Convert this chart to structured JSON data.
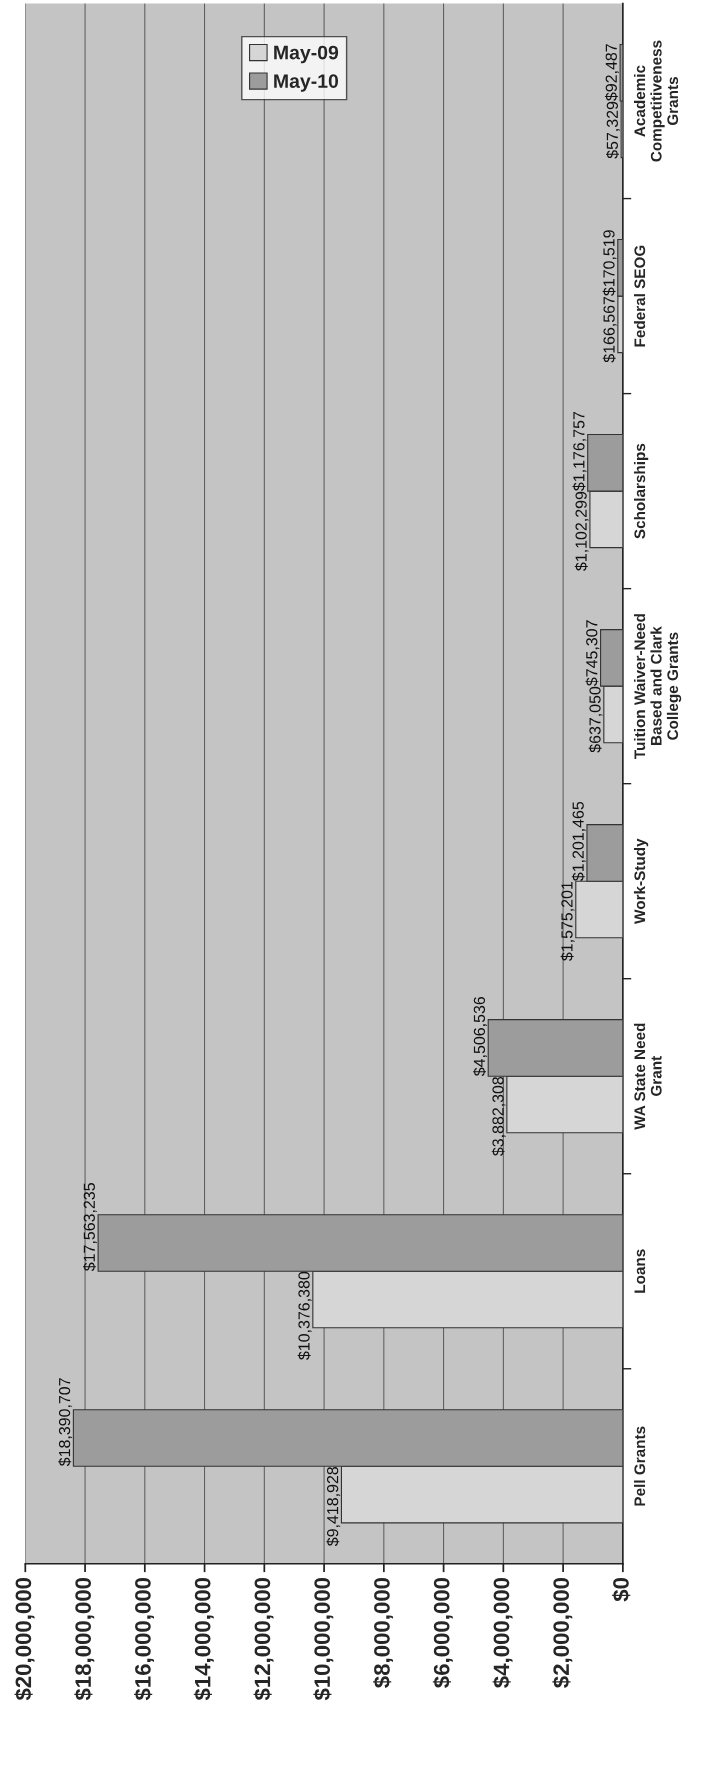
{
  "chart_data": {
    "type": "bar",
    "orientation": "horizontal",
    "categories": [
      "Academic\nCompetitiveness\nGrants",
      "Federal SEOG",
      "Scholarships",
      "Tuition Waiver-Need\nBased and Clark\nCollege Grants",
      "Work-Study",
      "WA State Need\nGrant",
      "Loans",
      "Pell Grants"
    ],
    "series": [
      {
        "name": "May-09",
        "color": "#d6d6d6",
        "values": [
          57329,
          166567,
          1102299,
          637050,
          1575201,
          3882308,
          10376380,
          9418928
        ],
        "value_labels": [
          "$57,329",
          "$166,567",
          "$1,102,299",
          "$637,050",
          "$1,575,201",
          "$3,882,308",
          "$10,376,380",
          "$9,418,928"
        ]
      },
      {
        "name": "May-10",
        "color": "#9c9c9c",
        "values": [
          92487,
          170519,
          1176757,
          745307,
          1201465,
          4506536,
          17563235,
          18390707
        ],
        "value_labels": [
          "$92,487",
          "$170,519",
          "$1,176,757",
          "$745,307",
          "$1,201,465",
          "$4,506,536",
          "$17,563,235",
          "$18,390,707"
        ]
      }
    ],
    "xlim": [
      20000000,
      0
    ],
    "xticks": [
      {
        "value": 0,
        "label": "$0"
      },
      {
        "value": 2000000,
        "label": "$2,000,000"
      },
      {
        "value": 4000000,
        "label": "$4,000,000"
      },
      {
        "value": 6000000,
        "label": "$6,000,000"
      },
      {
        "value": 8000000,
        "label": "$8,000,000"
      },
      {
        "value": 10000000,
        "label": "$10,000,000"
      },
      {
        "value": 12000000,
        "label": "$12,000,000"
      },
      {
        "value": 14000000,
        "label": "$14,000,000"
      },
      {
        "value": 16000000,
        "label": "$16,000,000"
      },
      {
        "value": 18000000,
        "label": "$18,000,000"
      },
      {
        "value": 20000000,
        "label": "$20,000,000"
      }
    ],
    "grid": "x",
    "legend": "top"
  }
}
